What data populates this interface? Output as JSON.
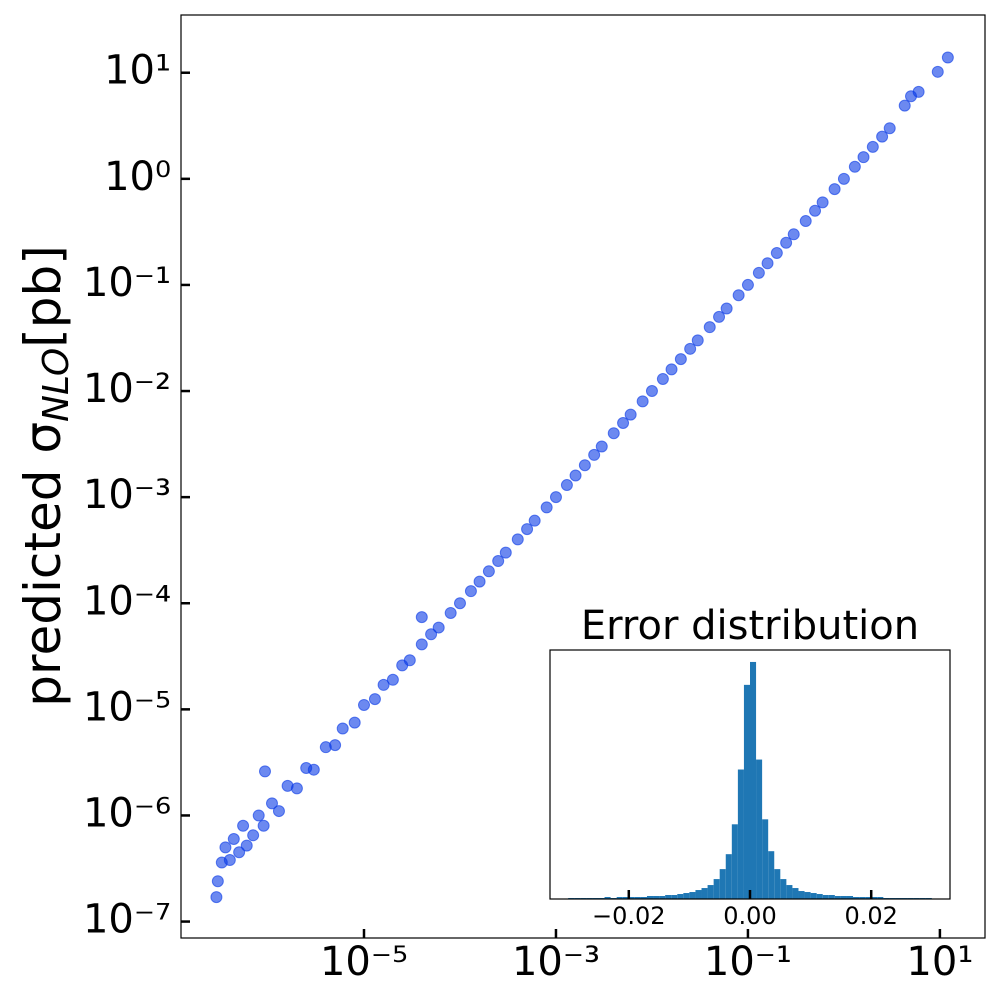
{
  "chart_data": [
    {
      "type": "scatter",
      "ylabel": [
        "predicted σ",
        "NLO",
        "[pb]"
      ],
      "xscale": "log",
      "yscale": "log",
      "xlim": [
        1.24e-07,
        29.5
      ],
      "ylim": [
        7e-08,
        35
      ],
      "xticks": [
        {
          "value": 1e-05,
          "label": "10⁻⁵"
        },
        {
          "value": 0.001,
          "label": "10⁻³"
        },
        {
          "value": 0.1,
          "label": "10⁻¹"
        },
        {
          "value": 10,
          "label": "10¹"
        }
      ],
      "yticks": [
        {
          "value": 1e-07,
          "label": "10⁻⁷"
        },
        {
          "value": 1e-06,
          "label": "10⁻⁶"
        },
        {
          "value": 1e-05,
          "label": "10⁻⁵"
        },
        {
          "value": 0.0001,
          "label": "10⁻⁴"
        },
        {
          "value": 0.001,
          "label": "10⁻³"
        },
        {
          "value": 0.01,
          "label": "10⁻²"
        },
        {
          "value": 0.1,
          "label": "10⁻¹"
        },
        {
          "value": 1,
          "label": "10⁰"
        },
        {
          "value": 10,
          "label": "10¹"
        }
      ],
      "color": "#0a3be6",
      "x": [
        2.9e-07,
        3e-07,
        3.3e-07,
        3.6e-07,
        4e-07,
        4.4e-07,
        5e-07,
        5.5e-07,
        6e-07,
        7e-07,
        8e-07,
        9e-07,
        9.3e-07,
        1.1e-06,
        1.3e-06,
        1.6e-06,
        2e-06,
        2.5e-06,
        3e-06,
        4e-06,
        5e-06,
        6e-06,
        8e-06,
        1e-05,
        1.3e-05,
        1.6e-05,
        2e-05,
        2.5e-05,
        3e-05,
        4e-05,
        4e-05,
        5e-05,
        6e-05,
        8e-05,
        0.0001,
        0.00013,
        0.00016,
        0.0002,
        0.00025,
        0.0003,
        0.0004,
        0.0005,
        0.0006,
        0.0008,
        0.001,
        0.0013,
        0.0016,
        0.002,
        0.0025,
        0.003,
        0.004,
        0.005,
        0.006,
        0.008,
        0.01,
        0.013,
        0.016,
        0.02,
        0.025,
        0.03,
        0.04,
        0.05,
        0.06,
        0.08,
        0.1,
        0.13,
        0.16,
        0.2,
        0.25,
        0.3,
        0.4,
        0.5,
        0.6,
        0.8,
        1,
        1.3,
        1.6,
        2,
        2.5,
        3,
        4.3,
        5,
        6,
        9.5,
        12.1
      ],
      "values": [
        1.7e-07,
        2.4e-07,
        3.6e-07,
        5e-07,
        3.8e-07,
        6e-07,
        4.5e-07,
        8e-07,
        5.2e-07,
        6.5e-07,
        1e-06,
        8e-07,
        2.6e-06,
        1.3e-06,
        1.1e-06,
        1.9e-06,
        1.8e-06,
        2.8e-06,
        2.7e-06,
        4.4e-06,
        4.6e-06,
        6.6e-06,
        7.5e-06,
        1.1e-05,
        1.25e-05,
        1.7e-05,
        1.9e-05,
        2.6e-05,
        2.9e-05,
        4.1e-05,
        7.4e-05,
        5.1e-05,
        5.9e-05,
        8.1e-05,
        0.0001,
        0.00013,
        0.00016,
        0.0002,
        0.00025,
        0.0003,
        0.0004,
        0.0005,
        0.0006,
        0.0008,
        0.001,
        0.0013,
        0.0016,
        0.002,
        0.0025,
        0.003,
        0.004,
        0.005,
        0.006,
        0.008,
        0.01,
        0.013,
        0.016,
        0.02,
        0.025,
        0.03,
        0.04,
        0.05,
        0.06,
        0.08,
        0.1,
        0.13,
        0.16,
        0.2,
        0.25,
        0.3,
        0.4,
        0.5,
        0.6,
        0.8,
        1,
        1.3,
        1.6,
        2,
        2.5,
        3,
        4.9,
        6,
        6.6,
        10.2,
        13.9
      ]
    },
    {
      "type": "histogram",
      "title": "Error distribution",
      "xlim": [
        -0.033,
        0.033
      ],
      "ylim": [
        0,
        250
      ],
      "xticks": [
        {
          "value": -0.02,
          "label": "−0.02"
        },
        {
          "value": 0,
          "label": "0.00"
        },
        {
          "value": 0.02,
          "label": "0.02"
        }
      ],
      "color": "#1f77b4",
      "bins": [
        -0.03,
        -0.029,
        -0.028,
        -0.027,
        -0.026,
        -0.025,
        -0.024,
        -0.023,
        -0.022,
        -0.021,
        -0.02,
        -0.019,
        -0.018,
        -0.017,
        -0.016,
        -0.015,
        -0.014,
        -0.013,
        -0.012,
        -0.011,
        -0.01,
        -0.009,
        -0.008,
        -0.007,
        -0.006,
        -0.005,
        -0.004,
        -0.003,
        -0.002,
        -0.001,
        0,
        0.001,
        0.002,
        0.003,
        0.004,
        0.005,
        0.006,
        0.007,
        0.008,
        0.009,
        0.01,
        0.011,
        0.012,
        0.013,
        0.014,
        0.015,
        0.016,
        0.017,
        0.018,
        0.019,
        0.02,
        0.021,
        0.022,
        0.023,
        0.024,
        0.025,
        0.026,
        0.027,
        0.028,
        0.029,
        0.03
      ],
      "values": [
        1,
        1,
        1,
        1,
        1,
        1,
        2,
        1,
        2,
        2,
        2,
        2,
        2,
        3,
        3,
        3,
        4,
        4,
        5,
        6,
        7,
        9,
        11,
        14,
        20,
        30,
        45,
        75,
        130,
        215,
        238,
        140,
        80,
        48,
        30,
        20,
        14,
        11,
        8,
        7,
        6,
        5,
        4,
        4,
        3,
        3,
        3,
        2,
        2,
        2,
        2,
        2,
        1,
        1,
        1,
        1,
        1,
        1,
        1,
        1
      ]
    }
  ]
}
